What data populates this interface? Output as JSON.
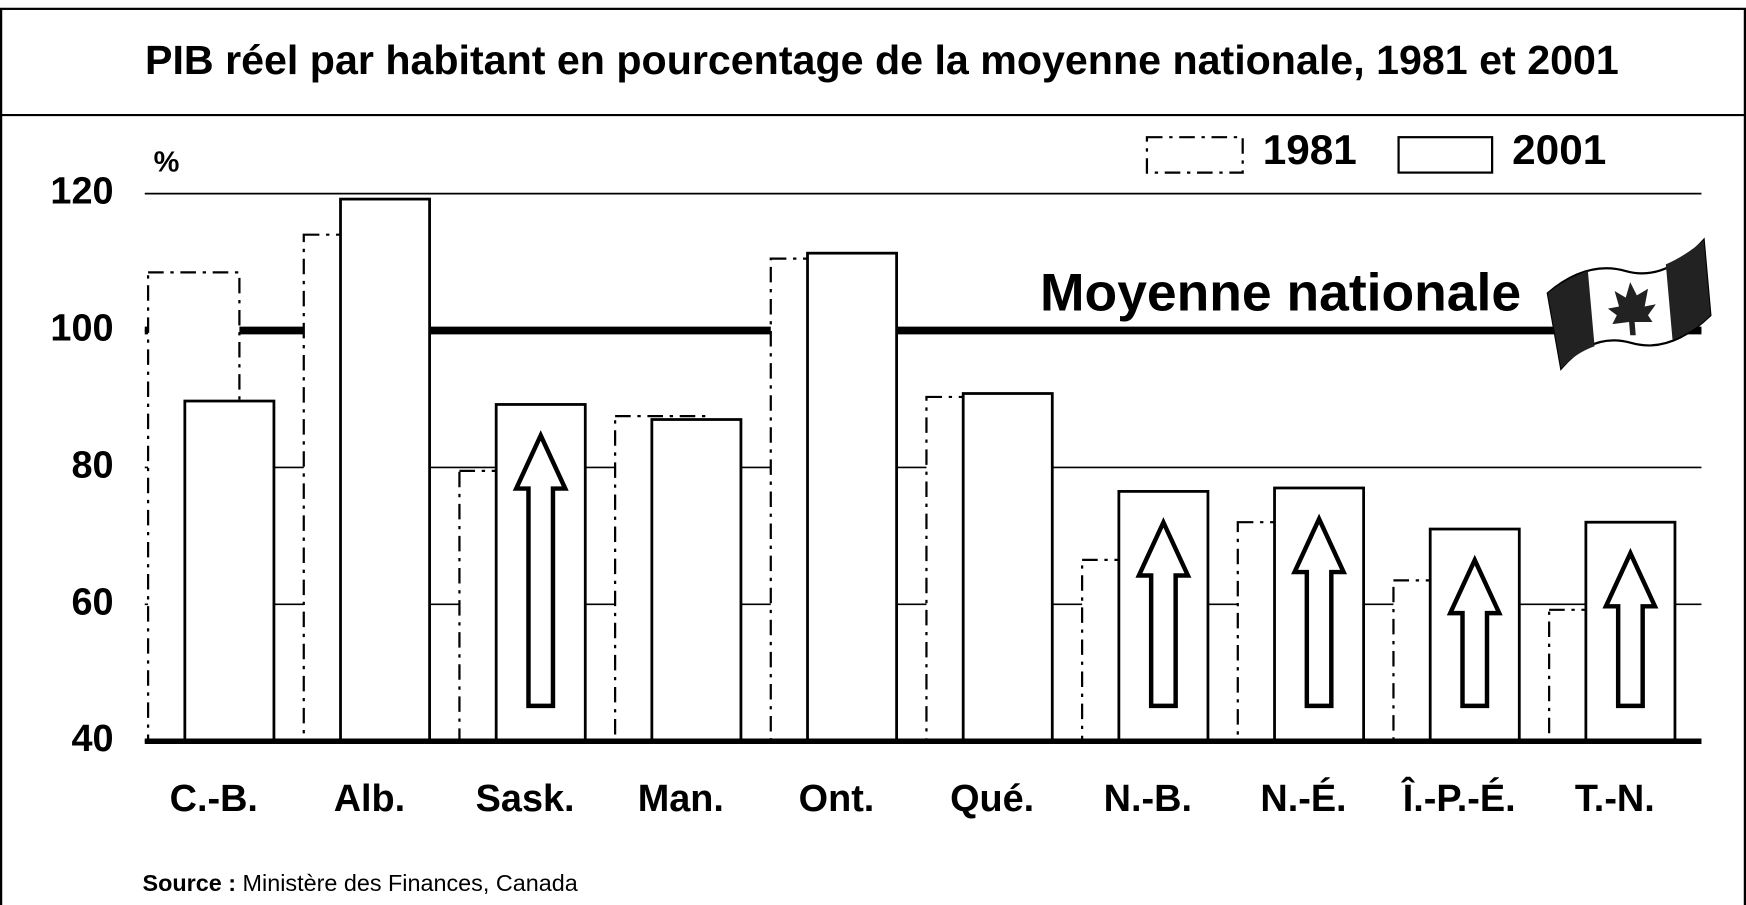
{
  "chart_data": {
    "type": "bar",
    "title": "PIB réel par habitant en pourcentage de la moyenne nationale, 1981 et 2001",
    "y_label": "%",
    "annotation": "Moyenne nationale",
    "reference_value": 100,
    "source_label": "Source :",
    "source": "Ministère des Finances, Canada",
    "categories": [
      "C.-B.",
      "Alb.",
      "Sask.",
      "Man.",
      "Ont.",
      "Qué.",
      "N.-B.",
      "N.-É.",
      "Î.-P.-É.",
      "T.-N."
    ],
    "series": [
      {
        "name": "1981",
        "color": "#ffffff",
        "line_style": "dashdot",
        "values": [
          108.5,
          114,
          79.5,
          87.5,
          110.5,
          90.3,
          66.5,
          72,
          63.5,
          59.2
        ]
      },
      {
        "name": "2001",
        "color": "#ffffff",
        "line_style": "solid",
        "values": [
          89.7,
          119.2,
          89.2,
          87,
          111.3,
          90.8,
          76.5,
          77,
          71,
          72
        ]
      }
    ],
    "ylim": [
      40,
      120
    ],
    "yticks": [
      40,
      60,
      80,
      100,
      120
    ],
    "grid": true,
    "legend": "top-right"
  }
}
